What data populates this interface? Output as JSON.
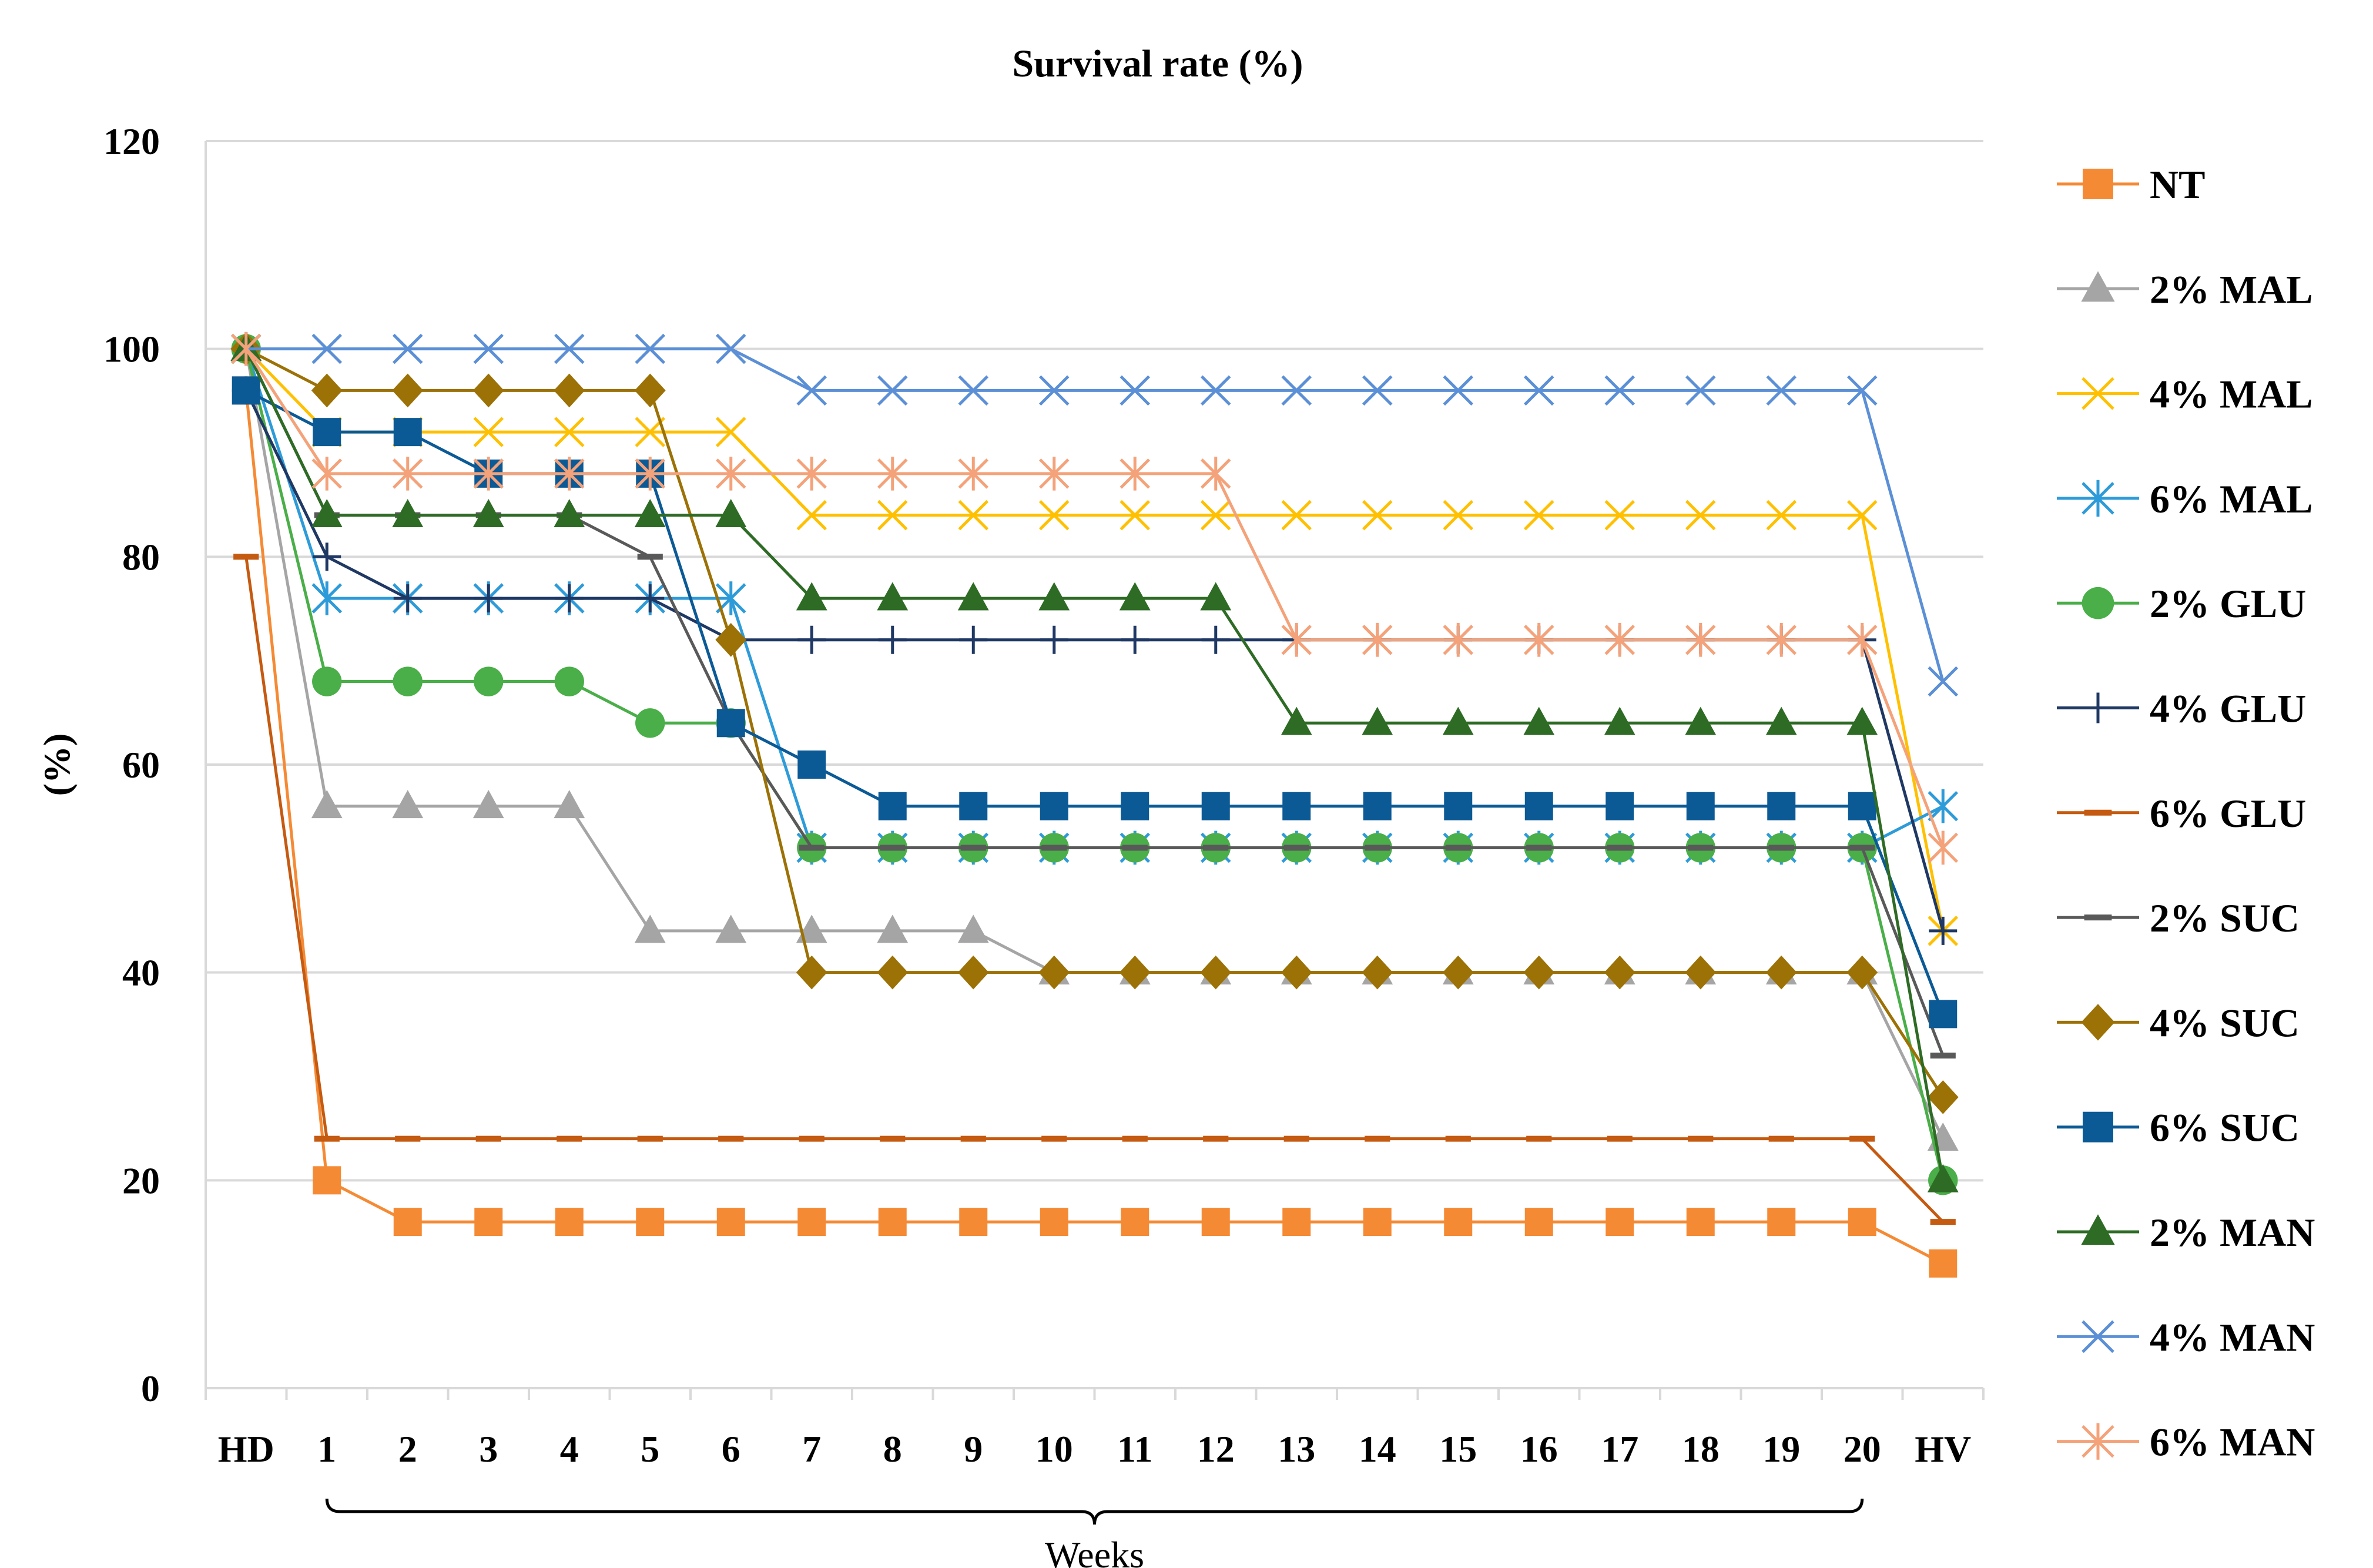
{
  "chart_data": {
    "type": "line",
    "title": "Survival rate (%)",
    "xlabel": "Weeks",
    "ylabel": "(%)",
    "ylim": [
      0,
      120
    ],
    "yticks": [
      "0",
      "20",
      "40",
      "60",
      "80",
      "100",
      "120"
    ],
    "categories": [
      "HD",
      "1",
      "2",
      "3",
      "4",
      "5",
      "6",
      "7",
      "8",
      "9",
      "10",
      "11",
      "12",
      "13",
      "14",
      "15",
      "16",
      "17",
      "18",
      "19",
      "20",
      "HV"
    ],
    "grid": "horizontal",
    "legend_position": "right",
    "series": [
      {
        "name": "NT",
        "color": "#F58A35",
        "marker": "square",
        "values": [
          96,
          20,
          16,
          16,
          16,
          16,
          16,
          16,
          16,
          16,
          16,
          16,
          16,
          16,
          16,
          16,
          16,
          16,
          16,
          16,
          16,
          12
        ]
      },
      {
        "name": "2% MAL",
        "color": "#A5A5A5",
        "marker": "triangle",
        "values": [
          100,
          56,
          56,
          56,
          56,
          44,
          44,
          44,
          44,
          44,
          40,
          40,
          40,
          40,
          40,
          40,
          40,
          40,
          40,
          40,
          40,
          24
        ]
      },
      {
        "name": "4% MAL",
        "color": "#FFC000",
        "marker": "x",
        "values": [
          100,
          92,
          92,
          92,
          92,
          92,
          92,
          84,
          84,
          84,
          84,
          84,
          84,
          84,
          84,
          84,
          84,
          84,
          84,
          84,
          84,
          44
        ]
      },
      {
        "name": "6% MAL",
        "color": "#2E9BD9",
        "marker": "asterisk",
        "values": [
          100,
          76,
          76,
          76,
          76,
          76,
          76,
          52,
          52,
          52,
          52,
          52,
          52,
          52,
          52,
          52,
          52,
          52,
          52,
          52,
          52,
          56
        ]
      },
      {
        "name": "2% GLU",
        "color": "#4AAE49",
        "marker": "circle",
        "values": [
          100,
          68,
          68,
          68,
          68,
          64,
          64,
          52,
          52,
          52,
          52,
          52,
          52,
          52,
          52,
          52,
          52,
          52,
          52,
          52,
          52,
          20
        ]
      },
      {
        "name": "4% GLU",
        "color": "#1F3864",
        "marker": "plus",
        "values": [
          96,
          80,
          76,
          76,
          76,
          76,
          72,
          72,
          72,
          72,
          72,
          72,
          72,
          72,
          72,
          72,
          72,
          72,
          72,
          72,
          72,
          44
        ]
      },
      {
        "name": "6% GLU",
        "color": "#C55A11",
        "marker": "dash",
        "values": [
          80,
          24,
          24,
          24,
          24,
          24,
          24,
          24,
          24,
          24,
          24,
          24,
          24,
          24,
          24,
          24,
          24,
          24,
          24,
          24,
          24,
          16
        ]
      },
      {
        "name": "2% SUC",
        "color": "#595959",
        "marker": "dash",
        "values": [
          100,
          84,
          84,
          84,
          84,
          80,
          64,
          52,
          52,
          52,
          52,
          52,
          52,
          52,
          52,
          52,
          52,
          52,
          52,
          52,
          52,
          32
        ]
      },
      {
        "name": "4% SUC",
        "color": "#9C7105",
        "marker": "diamond",
        "values": [
          100,
          96,
          96,
          96,
          96,
          96,
          72,
          40,
          40,
          40,
          40,
          40,
          40,
          40,
          40,
          40,
          40,
          40,
          40,
          40,
          40,
          28
        ]
      },
      {
        "name": "6% SUC",
        "color": "#0B5A96",
        "marker": "square",
        "values": [
          96,
          92,
          92,
          88,
          88,
          88,
          64,
          60,
          56,
          56,
          56,
          56,
          56,
          56,
          56,
          56,
          56,
          56,
          56,
          56,
          56,
          36
        ]
      },
      {
        "name": "2% MAN",
        "color": "#2E6B25",
        "marker": "triangle",
        "values": [
          100,
          84,
          84,
          84,
          84,
          84,
          84,
          76,
          76,
          76,
          76,
          76,
          76,
          64,
          64,
          64,
          64,
          64,
          64,
          64,
          64,
          20
        ]
      },
      {
        "name": "4% MAN",
        "color": "#5B8FD6",
        "marker": "x",
        "values": [
          100,
          100,
          100,
          100,
          100,
          100,
          100,
          96,
          96,
          96,
          96,
          96,
          96,
          96,
          96,
          96,
          96,
          96,
          96,
          96,
          96,
          68
        ]
      },
      {
        "name": "6% MAN",
        "color": "#F4A27A",
        "marker": "asterisk",
        "values": [
          100,
          88,
          88,
          88,
          88,
          88,
          88,
          88,
          88,
          88,
          88,
          88,
          88,
          72,
          72,
          72,
          72,
          72,
          72,
          72,
          72,
          52
        ]
      }
    ]
  }
}
